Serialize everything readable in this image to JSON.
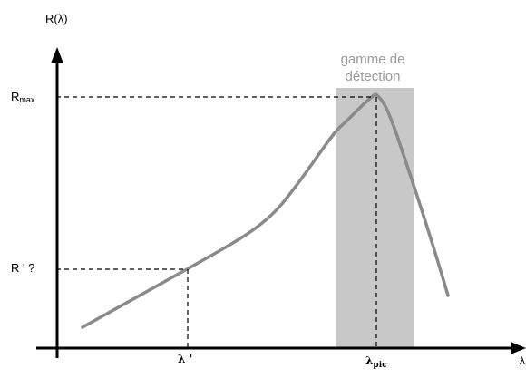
{
  "diagram": {
    "y_axis_label": "R(λ)",
    "x_axis_label_glyph": "λ",
    "band_title_line1": "gamme de",
    "band_title_line2": "détection",
    "r_max_base": "R",
    "r_max_sub": "max",
    "r_prime_label": "R ' ?",
    "lambda_prime_label": "λ '",
    "lambda_pic_base": "λ",
    "lambda_pic_sub": "pic",
    "colors": {
      "curve": "#8a8a8a",
      "band": "#c8c8c8",
      "band_title": "#9a9a9a",
      "axes": "#000000",
      "guides": "#000000"
    }
  }
}
